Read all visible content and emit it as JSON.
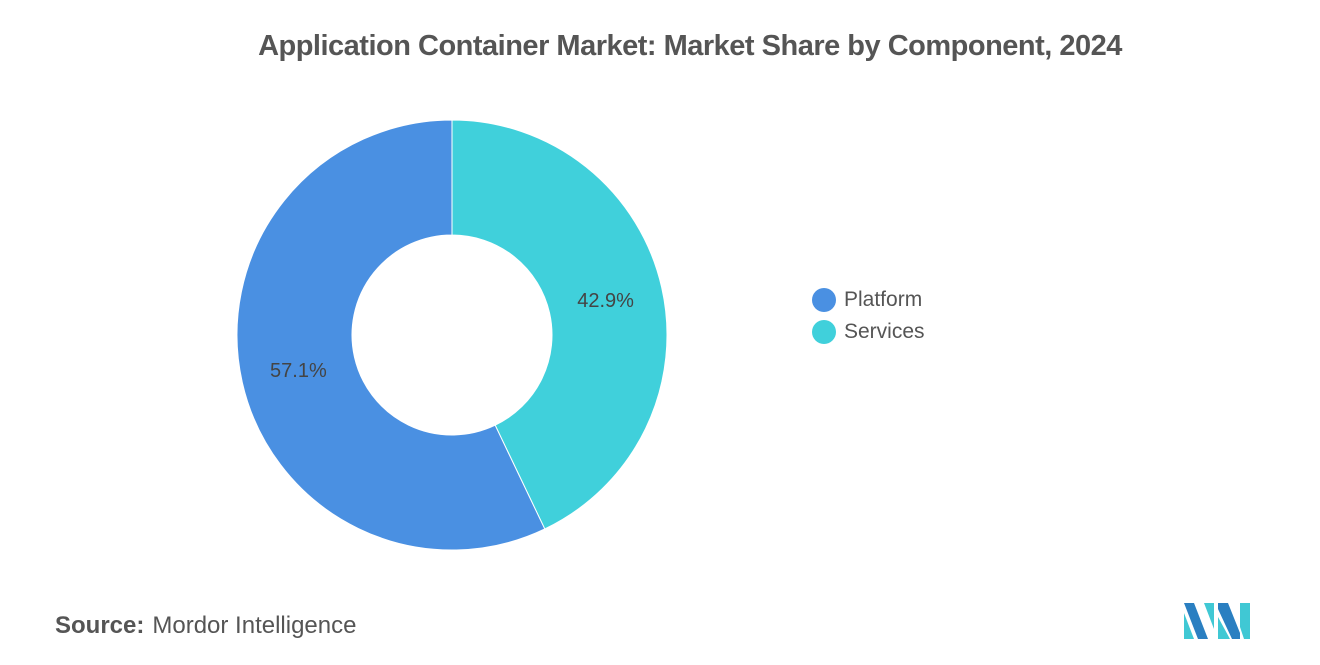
{
  "chart_data": {
    "type": "pie",
    "donut": true,
    "title": "Application Container Market: Market Share by Component, 2024",
    "categories": [
      "Platform",
      "Services"
    ],
    "values": [
      57.1,
      42.9
    ],
    "labels": [
      "57.1%",
      "42.9%"
    ],
    "colors": [
      "#4A90E2",
      "#40D0DB"
    ],
    "legend_position": "right"
  },
  "source": {
    "label": "Source:",
    "value": "Mordor Intelligence"
  },
  "logo": {
    "text": "Mordor Intelligence"
  }
}
